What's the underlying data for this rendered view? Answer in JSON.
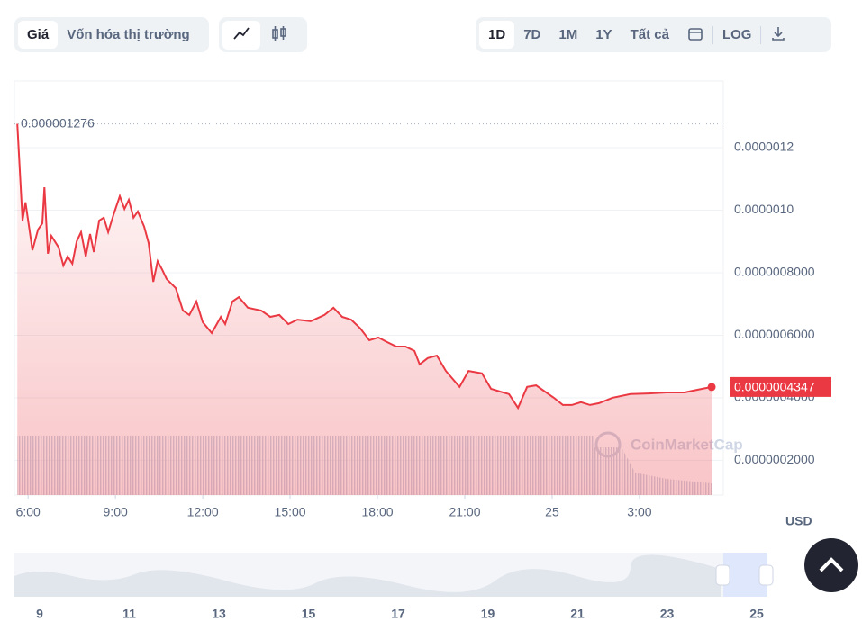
{
  "toolbar": {
    "view_tabs": [
      "Giá",
      "Vốn hóa thị trường"
    ],
    "range_tabs": [
      "1D",
      "7D",
      "1M",
      "1Y",
      "Tất cả"
    ],
    "scale_button": "LOG"
  },
  "chart_data": {
    "type": "line",
    "x": [
      5.63,
      5.81,
      5.91,
      6.15,
      6.34,
      6.49,
      6.56,
      6.68,
      6.8,
      7.05,
      7.21,
      7.36,
      7.52,
      7.67,
      7.82,
      7.98,
      8.13,
      8.26,
      8.44,
      8.6,
      8.75,
      8.94,
      9.15,
      9.31,
      9.46,
      9.62,
      9.77,
      9.99,
      10.14,
      10.3,
      10.45,
      10.61,
      10.76,
      11.07,
      11.32,
      11.54,
      11.78,
      12,
      12.31,
      12.62,
      12.77,
      13.02,
      13.24,
      13.55,
      14.01,
      14.32,
      14.63,
      14.94,
      15.25,
      15.71,
      16.18,
      16.49,
      16.79,
      17.1,
      17.41,
      17.72,
      18.03,
      18.34,
      18.65,
      18.96,
      19.27,
      19.45,
      19.73,
      20.04,
      20.35,
      20.82,
      21.13,
      21.59,
      21.9,
      22.21,
      22.52,
      22.83,
      23.14,
      23.45,
      23.75,
      24.06,
      24.37,
      24.68,
      24.99,
      25.3,
      25.61,
      26.07,
      26.69,
      27.31,
      27.93,
      28.55,
      29.01,
      29.48
    ],
    "series": [
      {
        "name": "Giá",
        "color": "#ea3943",
        "values": [
          1.276e-06,
          9.67e-07,
          1.025e-06,
          8.72e-07,
          9.38e-07,
          9.58e-07,
          1.073e-06,
          8.61e-07,
          9.18e-07,
          8.81e-07,
          8.23e-07,
          8.52e-07,
          8.29e-07,
          9.01e-07,
          9.3e-07,
          8.52e-07,
          9.24e-07,
          8.66e-07,
          9.67e-07,
          9.76e-07,
          9.3e-07,
          9.87e-07,
          1.045e-06,
          1.004e-06,
          1.033e-06,
          9.76e-07,
          9.96e-07,
          9.47e-07,
          8.95e-07,
          7.71e-07,
          8.37e-07,
          8.09e-07,
          7.8e-07,
          7.51e-07,
          6.79e-07,
          6.65e-07,
          7.08e-07,
          6.42e-07,
          6.07e-07,
          6.59e-07,
          6.36e-07,
          7.08e-07,
          7.22e-07,
          6.88e-07,
          6.79e-07,
          6.59e-07,
          6.65e-07,
          6.36e-07,
          6.5e-07,
          6.45e-07,
          6.65e-07,
          6.88e-07,
          6.59e-07,
          6.5e-07,
          6.22e-07,
          5.84e-07,
          5.93e-07,
          5.78e-07,
          5.64e-07,
          5.64e-07,
          5.5e-07,
          5.07e-07,
          5.27e-07,
          5.35e-07,
          4.86e-07,
          4.35e-07,
          4.86e-07,
          4.78e-07,
          4.29e-07,
          4.2e-07,
          4.12e-07,
          3.68e-07,
          4.35e-07,
          4.4e-07,
          4.2e-07,
          4e-07,
          3.77e-07,
          3.77e-07,
          3.86e-07,
          3.77e-07,
          3.83e-07,
          4e-07,
          4.12e-07,
          4.14e-07,
          4.17e-07,
          4.17e-07,
          4.26e-07,
          4.347e-07
        ]
      }
    ],
    "xlim": [
      5.53,
      29.88
    ],
    "xticks": [
      {
        "value": 6,
        "label": "6:00"
      },
      {
        "value": 9,
        "label": "9:00"
      },
      {
        "value": 12,
        "label": "12:00"
      },
      {
        "value": 15,
        "label": "15:00"
      },
      {
        "value": 18,
        "label": "18:00"
      },
      {
        "value": 21,
        "label": "21:00"
      },
      {
        "value": 24,
        "label": "25"
      },
      {
        "value": 27,
        "label": "3:00"
      }
    ],
    "ylim": [
      8.9e-08,
      1.413e-06
    ],
    "yticks": [
      {
        "value": 2e-07,
        "label": "0.0000002000"
      },
      {
        "value": 4e-07,
        "label": "0.0000004000"
      },
      {
        "value": 6e-07,
        "label": "0.0000006000"
      },
      {
        "value": 8e-07,
        "label": "0.0000008000"
      },
      {
        "value": 1e-06,
        "label": "0.0000010"
      },
      {
        "value": 1.2e-06,
        "label": "0.0000012"
      }
    ],
    "grid": true,
    "max_label": "0.000001276",
    "last_label": "0.0000004347",
    "currency": "USD",
    "watermark": "CoinMarketCap"
  },
  "navigator": {
    "labels": [
      "9",
      "11",
      "13",
      "15",
      "17",
      "19",
      "21",
      "23",
      "25"
    ]
  }
}
